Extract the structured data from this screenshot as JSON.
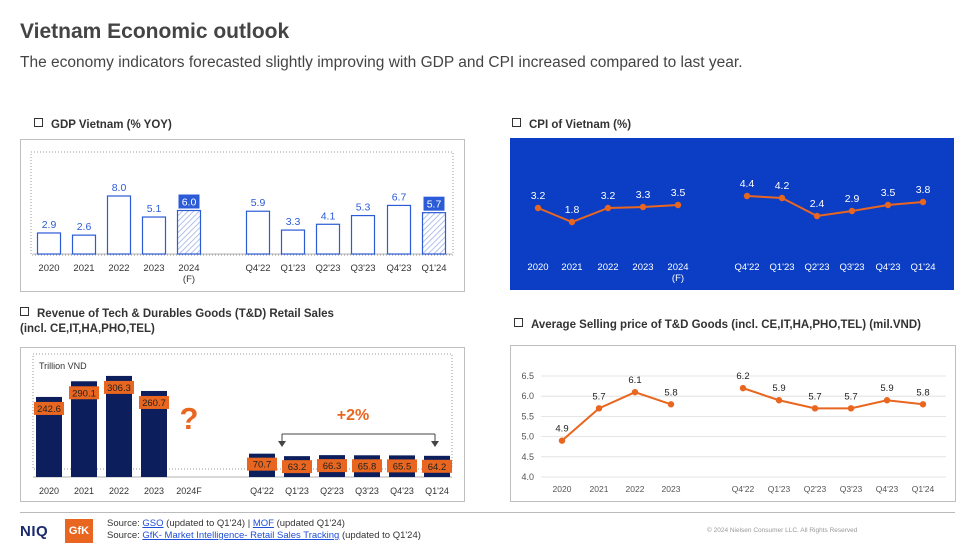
{
  "header": {
    "title": "Vietnam Economic outlook",
    "subtitle": "The economy indicators forecasted slightly improving with GDP and CPI increased compared to last year."
  },
  "colors": {
    "gdp_bar_border": "#2b5bd7",
    "gdp_label_bg": "#2b5bd7",
    "cpi_bg": "#0b3ec4",
    "orange": "#e8661f",
    "navy": "#0c1e5b"
  },
  "chart_data": [
    {
      "id": "gdp",
      "type": "bar",
      "title": "GDP Vietnam (% YOY)",
      "categories": [
        "2020",
        "2021",
        "2022",
        "2023",
        "2024\n(F)",
        "Q4'22",
        "Q1'23",
        "Q2'23",
        "Q3'23",
        "Q4'23",
        "Q1'24"
      ],
      "values": [
        2.9,
        2.6,
        8.0,
        5.1,
        6.0,
        5.9,
        3.3,
        4.1,
        5.3,
        6.7,
        5.7
      ],
      "labels": [
        "2.9",
        "2.6",
        "8.0",
        "5.1",
        "6.0",
        "5.9",
        "3.3",
        "4.1",
        "5.3",
        "6.7",
        "5.7"
      ],
      "highlighted": [
        4,
        10
      ]
    },
    {
      "id": "cpi",
      "type": "line",
      "title": "CPI of Vietnam (%)",
      "categories": [
        "2020",
        "2021",
        "2022",
        "2023",
        "2024\n(F)",
        "Q4'22",
        "Q1'23",
        "Q2'23",
        "Q3'23",
        "Q4'23",
        "Q1'24"
      ],
      "segments": [
        [
          0,
          1,
          2,
          3,
          4
        ],
        [
          5,
          6,
          7,
          8,
          9,
          10
        ]
      ],
      "values": [
        3.2,
        1.8,
        3.2,
        3.3,
        3.5,
        4.4,
        4.2,
        2.4,
        2.9,
        3.5,
        3.8
      ],
      "labels": [
        "3.2",
        "1.8",
        "3.2",
        "3.3",
        "3.5",
        "4.4",
        "4.2",
        "2.4",
        "2.9",
        "3.5",
        "3.8"
      ]
    },
    {
      "id": "revenue",
      "type": "bar",
      "title": "Revenue of Tech & Durables Goods (T&D) Retail Sales",
      "title2": "(incl. CE,IT,HA,PHO,TEL)",
      "unit_label": "Trillion VND",
      "categories": [
        "2020",
        "2021",
        "2022",
        "2023",
        "2024F",
        "Q4'22",
        "Q1'23",
        "Q2'23",
        "Q3'23",
        "Q4'23",
        "Q1'24"
      ],
      "values": [
        242.6,
        290.1,
        306.3,
        260.7,
        null,
        70.7,
        63.2,
        66.3,
        65.8,
        65.5,
        64.2
      ],
      "labels": [
        "242.6",
        "290.1",
        "306.3",
        "260.7",
        "",
        "70.7",
        "63.2",
        "66.3",
        "65.8",
        "65.5",
        "64.2"
      ],
      "annotation_unknown": "?",
      "annotation_growth": "+2%"
    },
    {
      "id": "asp",
      "type": "line",
      "title": "Average Selling price of T&D Goods (incl. CE,IT,HA,PHO,TEL) (mil.VND)",
      "categories": [
        "2020",
        "2021",
        "2022",
        "2023",
        "Q4'22",
        "Q1'23",
        "Q2'23",
        "Q3'23",
        "Q4'23",
        "Q1'24"
      ],
      "segments": [
        [
          0,
          1,
          2,
          3
        ],
        [
          4,
          5,
          6,
          7,
          8,
          9
        ]
      ],
      "values": [
        4.9,
        5.7,
        6.1,
        5.8,
        6.2,
        5.9,
        5.7,
        5.7,
        5.9,
        5.8
      ],
      "labels": [
        "4.9",
        "5.7",
        "6.1",
        "5.8",
        "6.2",
        "5.9",
        "5.7",
        "5.7",
        "5.9",
        "5.8"
      ],
      "yticks": [
        "6.5",
        "6.0",
        "5.5",
        "5.0",
        "4.5",
        "4.0"
      ],
      "ylim": [
        4.0,
        6.5
      ]
    }
  ],
  "footer": {
    "logo_niq": "NIQ",
    "logo_gfk": "GfK",
    "source1_prefix": "Source: ",
    "source1_gso": "GSO",
    "source1_mid": " (updated to Q1'24) | ",
    "source1_mof": "MOF",
    "source1_suffix": " (updated Q1'24)",
    "source2_prefix": "Source: ",
    "source2_link": "GfK- Market Intelligence- Retail Sales Tracking",
    "source2_suffix": " (updated to Q1'24)",
    "copyright": "© 2024 Nielsen Consumer LLC. All Rights Reserved"
  }
}
